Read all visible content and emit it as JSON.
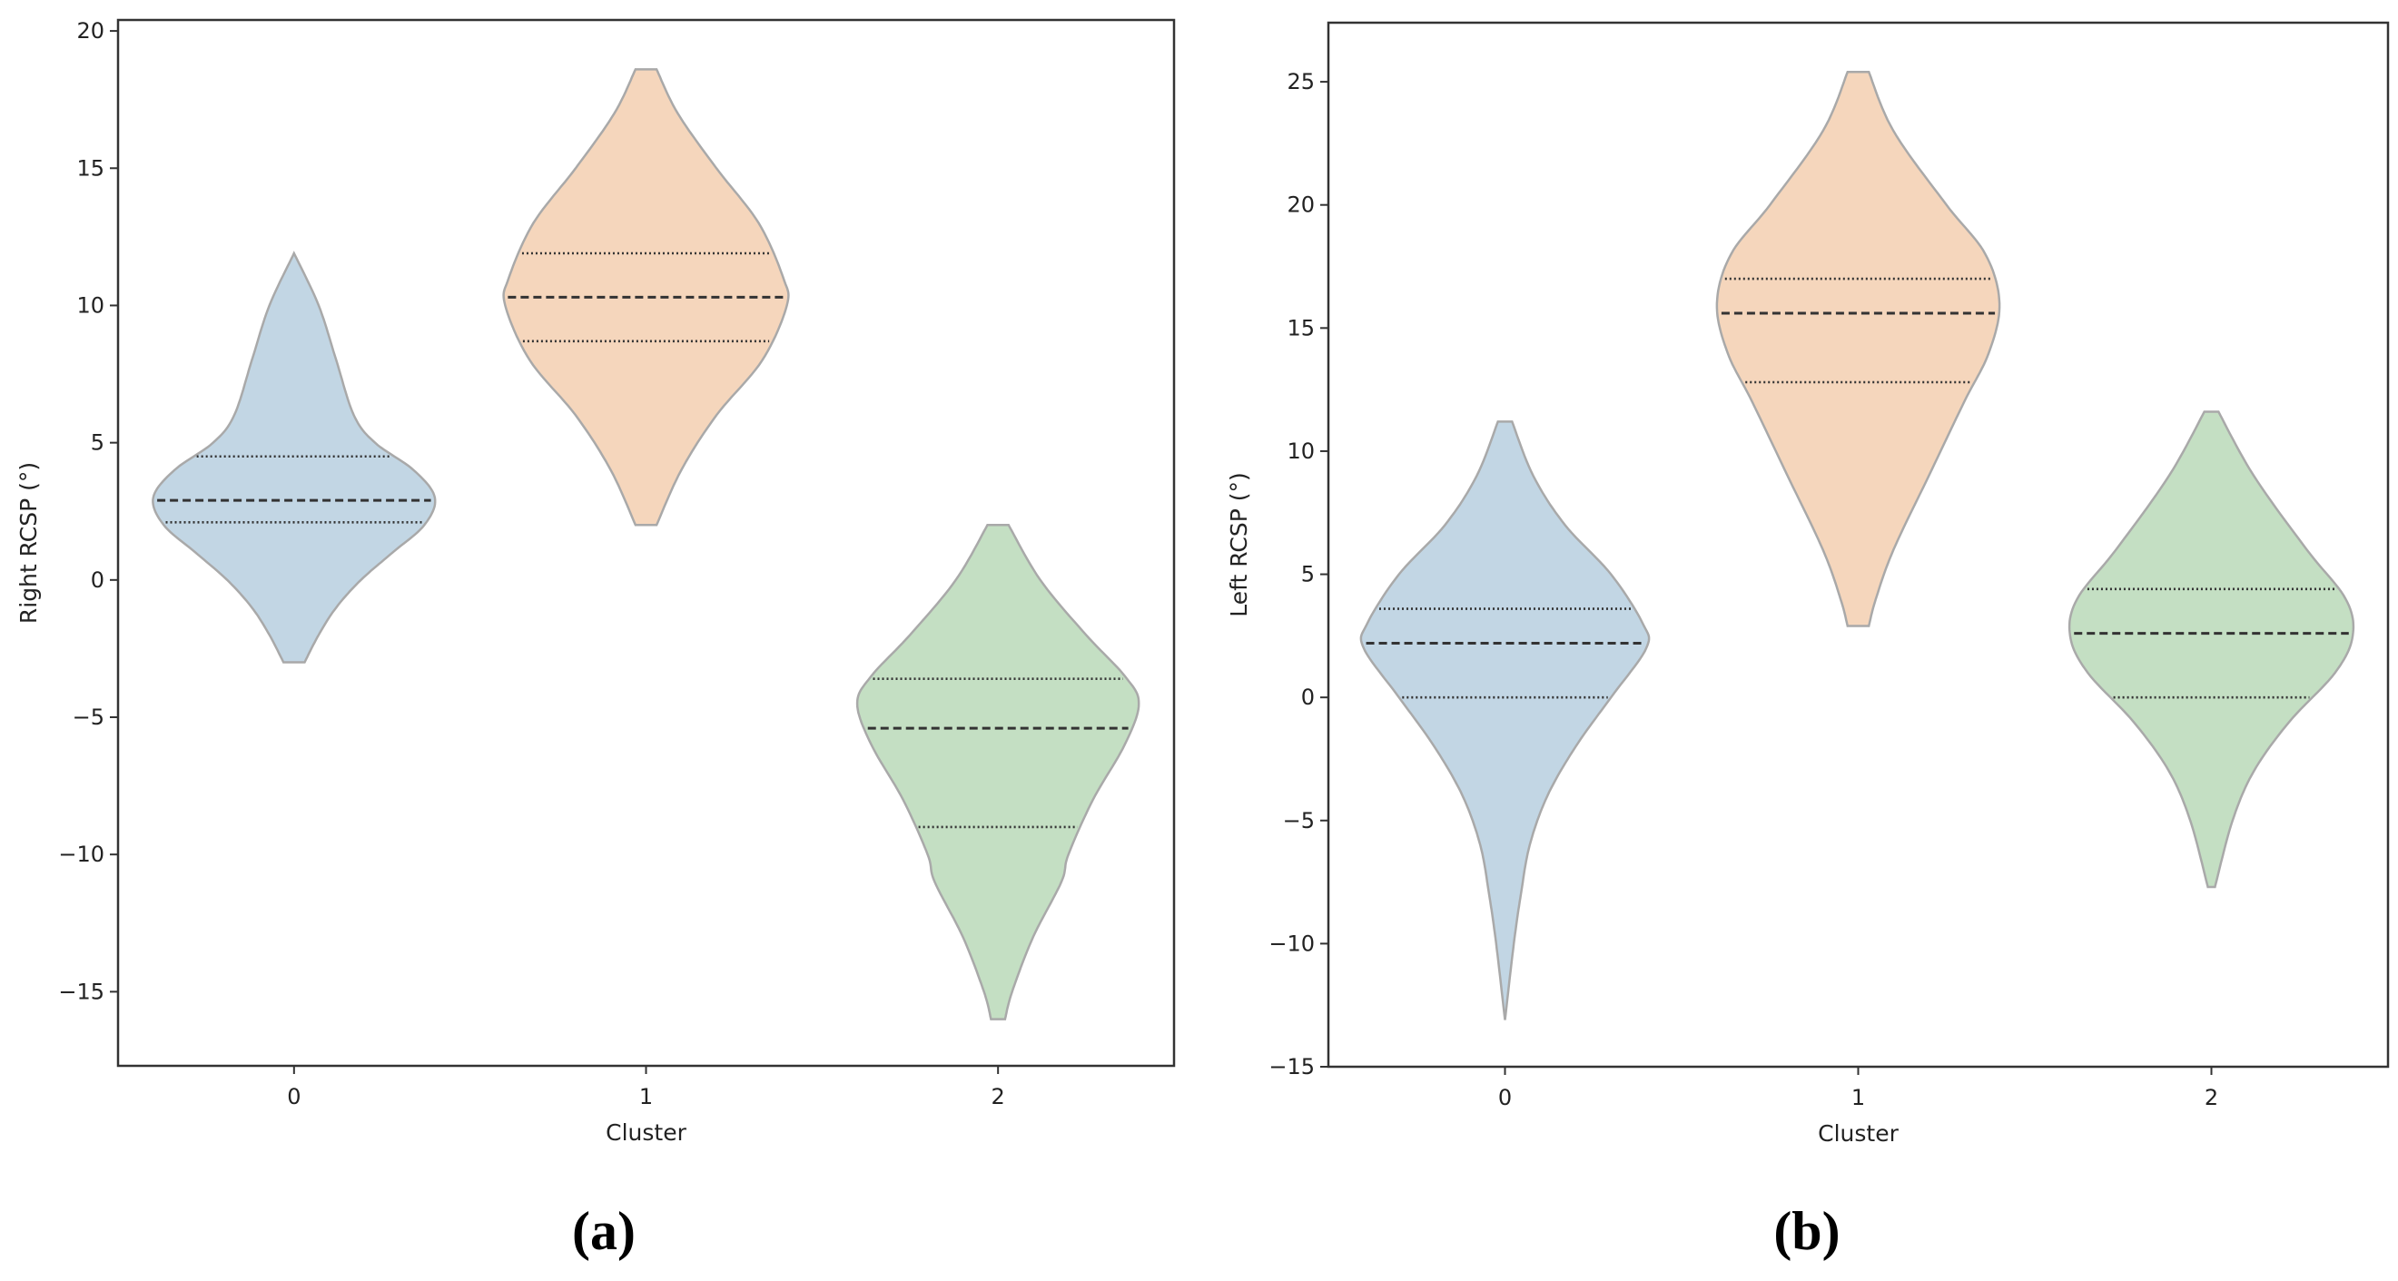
{
  "chart_data": [
    {
      "type": "violin",
      "panel_label": "(a)",
      "xlabel": "Cluster",
      "ylabel": "Right RCSP (°)",
      "categories": [
        "0",
        "1",
        "2"
      ],
      "yticks": [
        -15,
        -10,
        -5,
        0,
        5,
        10,
        15,
        20
      ],
      "ytick_labels": [
        "−15",
        "−10",
        "−5",
        "0",
        "5",
        "10",
        "15",
        "20"
      ],
      "ylim": [
        -17.7,
        20.4
      ],
      "grid": false,
      "inner": "quartile",
      "colors": [
        "#c2d6e4",
        "#f5d6bc",
        "#c4dfc3"
      ],
      "violins": [
        {
          "category": "0",
          "min": -3.0,
          "max": 11.9,
          "q1": 2.1,
          "median": 2.9,
          "q3": 4.5,
          "density": [
            [
              11.9,
              0.0
            ],
            [
              10,
              0.07
            ],
            [
              8,
              0.12
            ],
            [
              6,
              0.17
            ],
            [
              5,
              0.23
            ],
            [
              4,
              0.34
            ],
            [
              3,
              0.4
            ],
            [
              2,
              0.37
            ],
            [
              1,
              0.28
            ],
            [
              0,
              0.19
            ],
            [
              -1,
              0.12
            ],
            [
              -2,
              0.07
            ],
            [
              -3,
              0.03
            ]
          ]
        },
        {
          "category": "1",
          "min": 2.0,
          "max": 18.6,
          "q1": 8.7,
          "median": 10.3,
          "q3": 11.9,
          "density": [
            [
              18.6,
              0.03
            ],
            [
              17,
              0.09
            ],
            [
              15,
              0.2
            ],
            [
              13,
              0.32
            ],
            [
              11,
              0.39
            ],
            [
              10,
              0.4
            ],
            [
              8,
              0.33
            ],
            [
              6,
              0.2
            ],
            [
              4,
              0.1
            ],
            [
              2,
              0.03
            ]
          ]
        },
        {
          "category": "2",
          "min": -16.0,
          "max": 2.0,
          "q1": -9.0,
          "median": -5.4,
          "q3": -3.6,
          "density": [
            [
              2,
              0.03
            ],
            [
              0,
              0.12
            ],
            [
              -2,
              0.25
            ],
            [
              -3.5,
              0.36
            ],
            [
              -4.5,
              0.4
            ],
            [
              -6,
              0.36
            ],
            [
              -8,
              0.27
            ],
            [
              -10,
              0.2
            ],
            [
              -11,
              0.18
            ],
            [
              -13,
              0.1
            ],
            [
              -15,
              0.04
            ],
            [
              -16,
              0.02
            ]
          ]
        }
      ]
    },
    {
      "type": "violin",
      "panel_label": "(b)",
      "xlabel": "Cluster",
      "ylabel": "Left RCSP (°)",
      "categories": [
        "0",
        "1",
        "2"
      ],
      "yticks": [
        -15,
        -10,
        -5,
        0,
        5,
        10,
        15,
        20,
        25
      ],
      "ytick_labels": [
        "−15",
        "−10",
        "−5",
        "0",
        "5",
        "10",
        "15",
        "20",
        "25"
      ],
      "ylim": [
        -15,
        27.4
      ],
      "grid": false,
      "inner": "quartile",
      "colors": [
        "#c2d6e4",
        "#f5d6bc",
        "#c4dfc3"
      ],
      "violins": [
        {
          "category": "0",
          "min": -13.1,
          "max": 11.2,
          "q1": 0.0,
          "median": 2.2,
          "q3": 3.6,
          "density": [
            [
              11.2,
              0.02
            ],
            [
              9,
              0.08
            ],
            [
              7,
              0.17
            ],
            [
              5,
              0.3
            ],
            [
              3,
              0.39
            ],
            [
              2,
              0.4
            ],
            [
              0,
              0.3
            ],
            [
              -2,
              0.2
            ],
            [
              -4,
              0.12
            ],
            [
              -6,
              0.07
            ],
            [
              -8,
              0.045
            ],
            [
              -10,
              0.025
            ],
            [
              -13.1,
              0.0
            ]
          ]
        },
        {
          "category": "1",
          "min": 2.9,
          "max": 25.4,
          "q1": 12.8,
          "median": 15.6,
          "q3": 17.0,
          "density": [
            [
              25.4,
              0.03
            ],
            [
              23,
              0.1
            ],
            [
              20,
              0.25
            ],
            [
              18,
              0.36
            ],
            [
              16,
              0.4
            ],
            [
              14,
              0.37
            ],
            [
              12,
              0.3
            ],
            [
              9,
              0.2
            ],
            [
              6,
              0.1
            ],
            [
              4,
              0.05
            ],
            [
              2.9,
              0.03
            ]
          ]
        },
        {
          "category": "2",
          "min": -7.7,
          "max": 11.6,
          "q1": 0.0,
          "median": 2.6,
          "q3": 4.4,
          "density": [
            [
              11.6,
              0.02
            ],
            [
              9,
              0.12
            ],
            [
              6,
              0.27
            ],
            [
              4,
              0.38
            ],
            [
              2.5,
              0.4
            ],
            [
              1,
              0.35
            ],
            [
              -1,
              0.22
            ],
            [
              -3,
              0.12
            ],
            [
              -5,
              0.06
            ],
            [
              -7.7,
              0.01
            ]
          ]
        }
      ]
    }
  ]
}
